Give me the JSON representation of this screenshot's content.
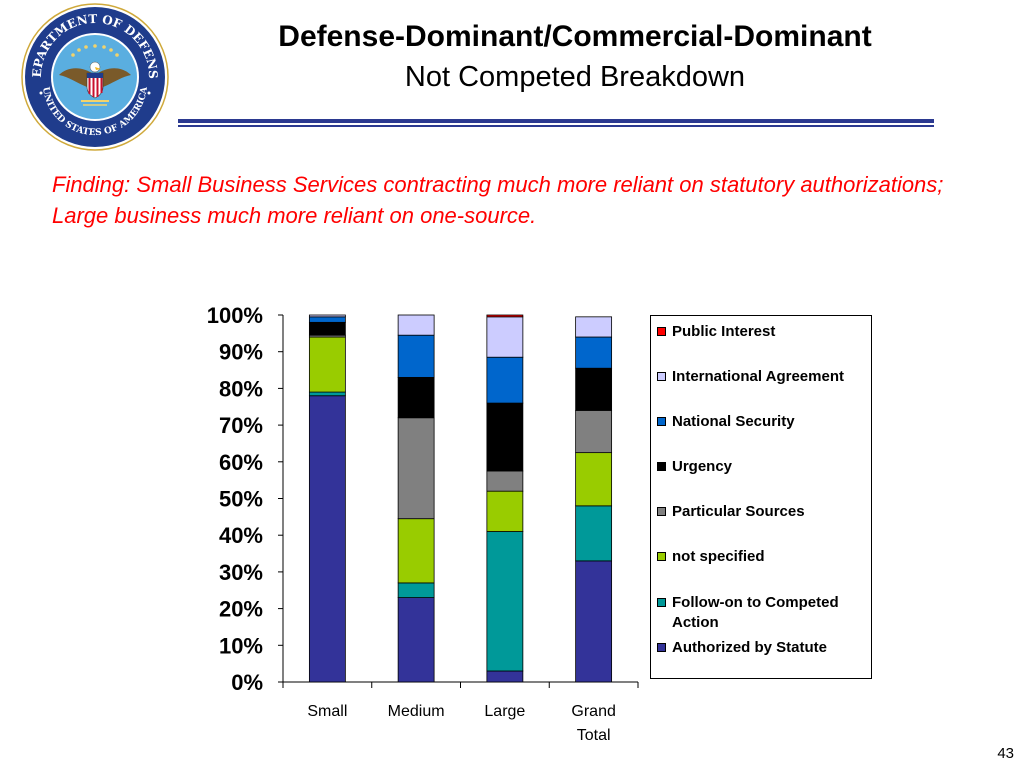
{
  "header": {
    "title": "Defense-Dominant/Commercial-Dominant",
    "subtitle": "Not Competed Breakdown",
    "seal_text_top": "DEPARTMENT OF DEFENSE",
    "seal_text_bottom": "UNITED STATES OF AMERICA"
  },
  "finding": "Finding:  Small Business Services contracting much more reliant on statutory authorizations; Large business much more reliant on one-source.",
  "page_number": "43",
  "chart_data": {
    "type": "bar",
    "stacked": true,
    "normalized": true,
    "categories": [
      "Small",
      "Medium",
      "Large",
      "Grand Total"
    ],
    "ylim": [
      0,
      100
    ],
    "yticks": [
      "0%",
      "10%",
      "20%",
      "30%",
      "40%",
      "50%",
      "60%",
      "70%",
      "80%",
      "90%",
      "100%"
    ],
    "grid": false,
    "legend_position": "right",
    "series": [
      {
        "name": "Authorized by Statute",
        "color": "#333399",
        "values": [
          78,
          23,
          3,
          33
        ]
      },
      {
        "name": "Follow-on to Competed Action",
        "color": "#009999",
        "values": [
          1,
          4,
          38,
          15
        ]
      },
      {
        "name": "not specified",
        "color": "#99cc00",
        "values": [
          15,
          17.5,
          11,
          14.5
        ]
      },
      {
        "name": "Particular Sources",
        "color": "#808080",
        "values": [
          0.5,
          27.5,
          5.5,
          11.5
        ]
      },
      {
        "name": "Urgency",
        "color": "#000000",
        "values": [
          3.5,
          11,
          18.5,
          11.5
        ]
      },
      {
        "name": "National Security",
        "color": "#0066cc",
        "values": [
          1.5,
          11.5,
          12.5,
          8.5
        ]
      },
      {
        "name": "International Agreement",
        "color": "#ccccff",
        "values": [
          0.5,
          5.5,
          11,
          5.5
        ]
      },
      {
        "name": "Public Interest",
        "color": "#ff0000",
        "values": [
          0,
          0,
          0.5,
          0
        ]
      }
    ]
  }
}
